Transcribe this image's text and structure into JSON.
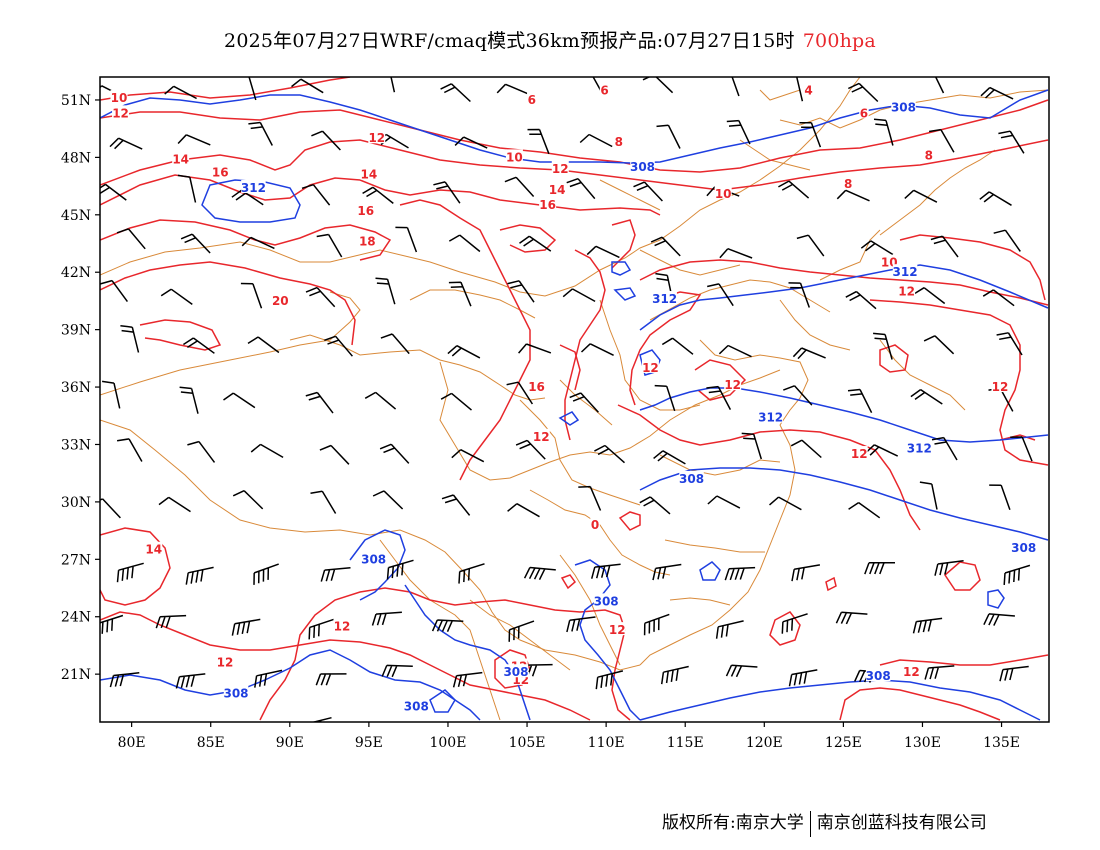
{
  "title": {
    "main": "2025年07月27日WRF/cmaq模式36km预报产品:07月27日15时",
    "level": "700hpa"
  },
  "axes": {
    "lat_labels": [
      "51N",
      "48N",
      "45N",
      "42N",
      "39N",
      "36N",
      "33N",
      "30N",
      "27N",
      "24N",
      "21N"
    ],
    "lon_labels": [
      "80E",
      "85E",
      "90E",
      "95E",
      "100E",
      "105E",
      "110E",
      "115E",
      "120E",
      "125E",
      "130E",
      "135E"
    ]
  },
  "contours": {
    "temperature_labels": [
      {
        "text": "10",
        "lon": 79.2,
        "lat": 51.1
      },
      {
        "text": "12",
        "lon": 79.3,
        "lat": 50.3
      },
      {
        "text": "14",
        "lon": 83.1,
        "lat": 47.9
      },
      {
        "text": "16",
        "lon": 85.6,
        "lat": 47.2
      },
      {
        "text": "12",
        "lon": 95.5,
        "lat": 49.0
      },
      {
        "text": "14",
        "lon": 95.0,
        "lat": 47.1
      },
      {
        "text": "16",
        "lon": 94.8,
        "lat": 45.2
      },
      {
        "text": "18",
        "lon": 94.9,
        "lat": 43.6
      },
      {
        "text": "20",
        "lon": 89.4,
        "lat": 40.5
      },
      {
        "text": "6",
        "lon": 105.3,
        "lat": 51.0
      },
      {
        "text": "6",
        "lon": 109.9,
        "lat": 51.5
      },
      {
        "text": "4",
        "lon": 122.8,
        "lat": 51.5
      },
      {
        "text": "6",
        "lon": 126.3,
        "lat": 50.3
      },
      {
        "text": "8",
        "lon": 110.8,
        "lat": 48.8
      },
      {
        "text": "10",
        "lon": 104.2,
        "lat": 48.0
      },
      {
        "text": "12",
        "lon": 107.1,
        "lat": 47.4
      },
      {
        "text": "14",
        "lon": 106.9,
        "lat": 46.3
      },
      {
        "text": "16",
        "lon": 106.3,
        "lat": 45.5
      },
      {
        "text": "10",
        "lon": 117.4,
        "lat": 46.1
      },
      {
        "text": "8",
        "lon": 130.4,
        "lat": 48.1
      },
      {
        "text": "8",
        "lon": 125.3,
        "lat": 46.6
      },
      {
        "text": "10",
        "lon": 127.9,
        "lat": 42.5
      },
      {
        "text": "12",
        "lon": 129.0,
        "lat": 41.0
      },
      {
        "text": "12",
        "lon": 112.8,
        "lat": 37.0
      },
      {
        "text": "16",
        "lon": 105.6,
        "lat": 36.0
      },
      {
        "text": "12",
        "lon": 118.0,
        "lat": 36.1
      },
      {
        "text": "12",
        "lon": 105.9,
        "lat": 33.4
      },
      {
        "text": "12",
        "lon": 134.9,
        "lat": 36.0
      },
      {
        "text": "12",
        "lon": 126.0,
        "lat": 32.5
      },
      {
        "text": "14",
        "lon": 81.4,
        "lat": 27.5
      },
      {
        "text": "12",
        "lon": 93.3,
        "lat": 23.5
      },
      {
        "text": "12",
        "lon": 85.9,
        "lat": 21.6
      },
      {
        "text": "12",
        "lon": 110.7,
        "lat": 23.3
      },
      {
        "text": "12",
        "lon": 104.5,
        "lat": 21.4
      },
      {
        "text": "12",
        "lon": 104.6,
        "lat": 20.7
      },
      {
        "text": "12",
        "lon": 129.3,
        "lat": 21.1
      },
      {
        "text": "0",
        "lon": 109.3,
        "lat": 28.8
      }
    ],
    "height_labels": [
      {
        "text": "308",
        "lon": 128.8,
        "lat": 50.6
      },
      {
        "text": "312",
        "lon": 87.7,
        "lat": 46.4
      },
      {
        "text": "308",
        "lon": 112.3,
        "lat": 47.5
      },
      {
        "text": "312",
        "lon": 128.9,
        "lat": 42.0
      },
      {
        "text": "312",
        "lon": 113.7,
        "lat": 40.6
      },
      {
        "text": "312",
        "lon": 120.4,
        "lat": 34.4
      },
      {
        "text": "312",
        "lon": 129.8,
        "lat": 32.8
      },
      {
        "text": "308",
        "lon": 115.4,
        "lat": 31.2
      },
      {
        "text": "308",
        "lon": 136.4,
        "lat": 27.6
      },
      {
        "text": "308",
        "lon": 95.3,
        "lat": 27.0
      },
      {
        "text": "308",
        "lon": 110.0,
        "lat": 24.8
      },
      {
        "text": "308",
        "lon": 86.6,
        "lat": 20.0
      },
      {
        "text": "308",
        "lon": 98.0,
        "lat": 19.3
      },
      {
        "text": "308",
        "lon": 127.2,
        "lat": 20.9
      },
      {
        "text": "308",
        "lon": 104.3,
        "lat": 21.1
      }
    ]
  },
  "colors": {
    "temperature_contour": "#e8272c",
    "height_contour": "#1f3fe0",
    "borders": "#d98a3a",
    "wind_barbs": "#000000",
    "frame": "#000000"
  },
  "copyright": {
    "left": "版权所有:南京大学",
    "right": "南京创蓝科技有限公司"
  }
}
